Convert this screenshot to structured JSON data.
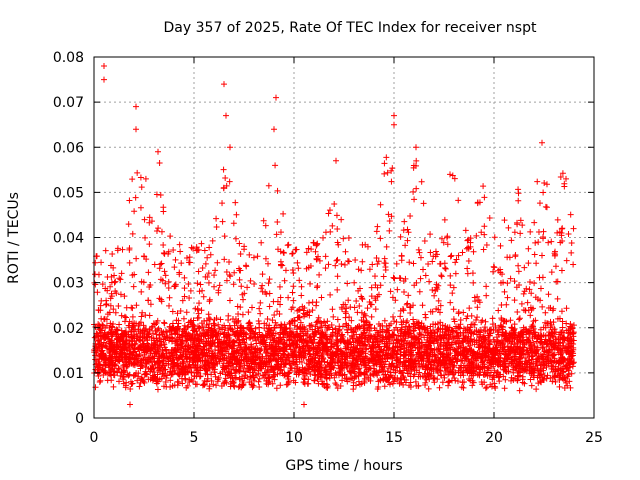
{
  "chart_data": {
    "type": "scatter",
    "title": "Day 357 of 2025, Rate Of TEC Index for receiver nspt",
    "xlabel": "GPS time / hours",
    "ylabel": "ROTI / TECUs",
    "xlim": [
      0,
      25
    ],
    "ylim": [
      0,
      0.08
    ],
    "x_ticks": [
      "0",
      "5",
      "10",
      "15",
      "20",
      "25"
    ],
    "y_ticks": [
      "0",
      "0.01",
      "0.02",
      "0.03",
      "0.04",
      "0.05",
      "0.06",
      "0.07",
      "0.08"
    ],
    "grid": true,
    "marker": "+",
    "marker_color": "#ff0000",
    "x_range_of_data": [
      0,
      24
    ],
    "dense_band_y_range": [
      0.006,
      0.022
    ],
    "notable_peaks": [
      {
        "x": 0.5,
        "y": 0.078
      },
      {
        "x": 0.5,
        "y": 0.075
      },
      {
        "x": 2.1,
        "y": 0.069
      },
      {
        "x": 2.1,
        "y": 0.064
      },
      {
        "x": 3.2,
        "y": 0.059
      },
      {
        "x": 6.5,
        "y": 0.074
      },
      {
        "x": 6.6,
        "y": 0.067
      },
      {
        "x": 6.8,
        "y": 0.06
      },
      {
        "x": 9.1,
        "y": 0.071
      },
      {
        "x": 9.0,
        "y": 0.064
      },
      {
        "x": 12.1,
        "y": 0.057
      },
      {
        "x": 15.0,
        "y": 0.067
      },
      {
        "x": 15.0,
        "y": 0.065
      },
      {
        "x": 16.1,
        "y": 0.06
      },
      {
        "x": 17.8,
        "y": 0.054
      },
      {
        "x": 22.4,
        "y": 0.061
      },
      {
        "x": 23.6,
        "y": 0.053
      }
    ],
    "low_points": [
      {
        "x": 1.8,
        "y": 0.003
      },
      {
        "x": 10.5,
        "y": 0.003
      }
    ]
  }
}
